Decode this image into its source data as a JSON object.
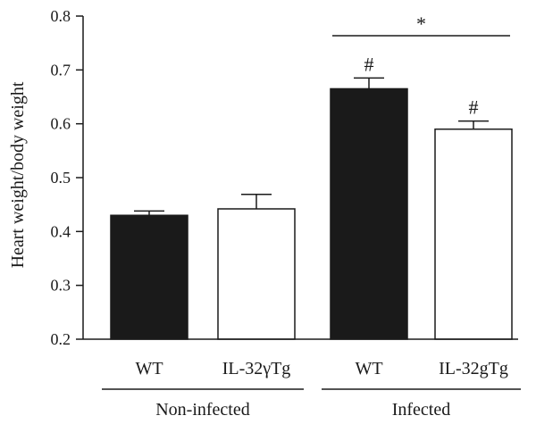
{
  "chart_data": {
    "type": "bar",
    "ylabel": "Heart weight/body weight",
    "xlabel": "",
    "ylim": [
      0.2,
      0.8
    ],
    "yticks": [
      0.2,
      0.3,
      0.4,
      0.5,
      0.6,
      0.7,
      0.8
    ],
    "yticks_text": [
      "0.2",
      "0.3",
      "0.4",
      "0.5",
      "0.6",
      "0.7",
      "0.8"
    ],
    "grid": false,
    "bars": [
      {
        "category": "WT",
        "group": "Non-infected",
        "value": 0.43,
        "error": 0.008,
        "fill": "#1a1a1a",
        "marker": ""
      },
      {
        "category": "IL-32γTg",
        "group": "Non-infected",
        "value": 0.442,
        "error": 0.027,
        "fill": "#ffffff",
        "marker": ""
      },
      {
        "category": "WT",
        "group": "Infected",
        "value": 0.665,
        "error": 0.02,
        "fill": "#1a1a1a",
        "marker": "#"
      },
      {
        "category": "IL-32gTg",
        "group": "Infected",
        "value": 0.59,
        "error": 0.015,
        "fill": "#ffffff",
        "marker": "#"
      }
    ],
    "groups": [
      {
        "label": "Non-infected",
        "bars": [
          0,
          1
        ]
      },
      {
        "label": "Infected",
        "bars": [
          2,
          3
        ]
      }
    ],
    "significance": [
      {
        "from": 2,
        "to": 3,
        "label": "*"
      }
    ]
  }
}
